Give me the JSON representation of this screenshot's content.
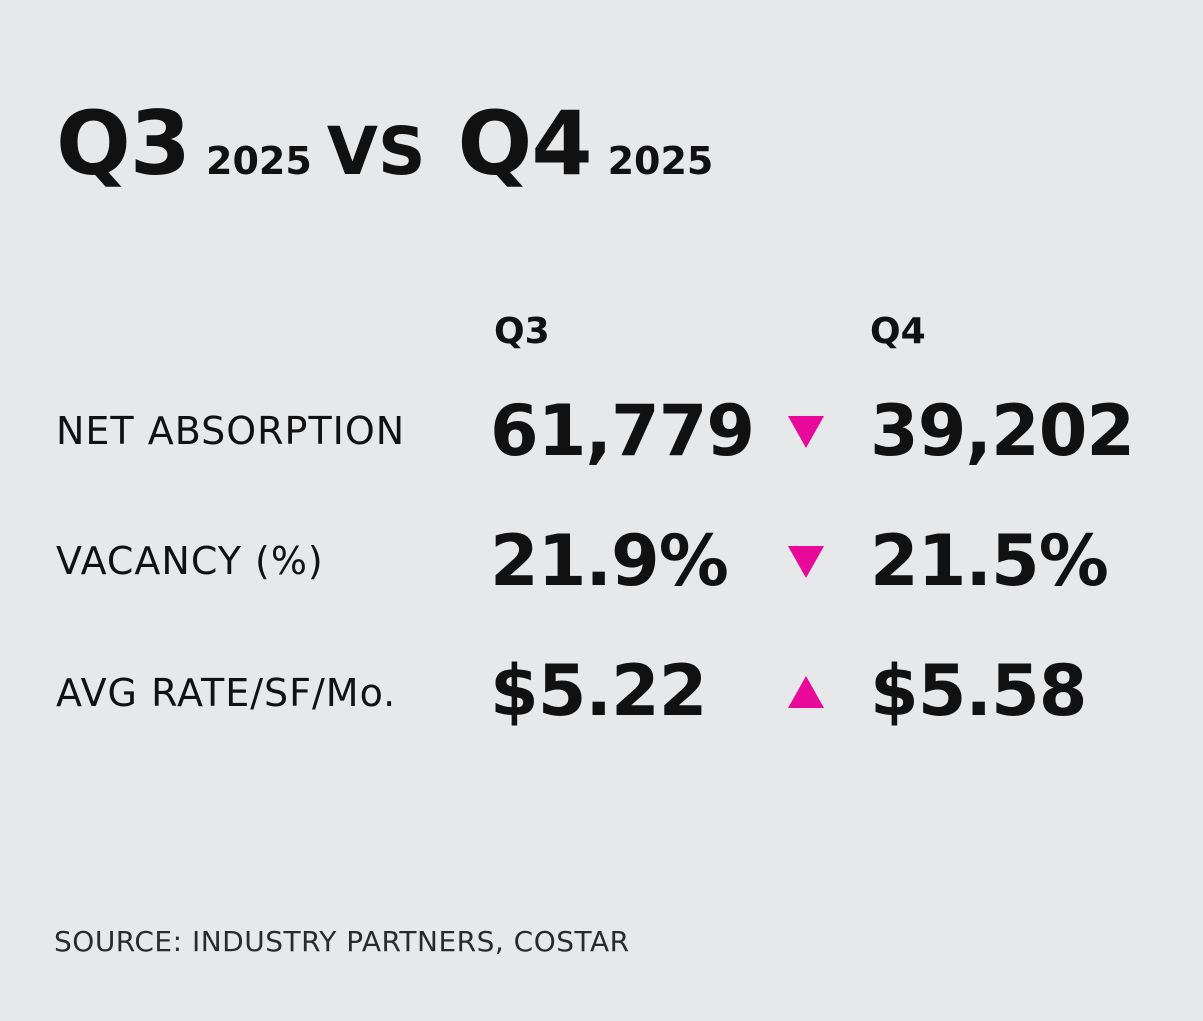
{
  "title": {
    "period_a": "Q3",
    "year_a": "2025",
    "vs": "VS",
    "period_b": "Q4",
    "year_b": "2025"
  },
  "columns": {
    "q3": "Q3",
    "q4": "Q4"
  },
  "rows": [
    {
      "label": "NET ABSORPTION",
      "q3": "61,779",
      "trend": "down",
      "q4": "39,202"
    },
    {
      "label": "VACANCY (%)",
      "q3": "21.9%",
      "trend": "down",
      "q4": "21.5%"
    },
    {
      "label": "AVG RATE/SF/Mo.",
      "q3": "$5.22",
      "trend": "up",
      "q4": "$5.58"
    }
  ],
  "source": "SOURCE: INDUSTRY PARTNERS, COSTAR",
  "colors": {
    "background": "#e7e8ea",
    "text": "#111111",
    "accent": "#e8089a"
  }
}
